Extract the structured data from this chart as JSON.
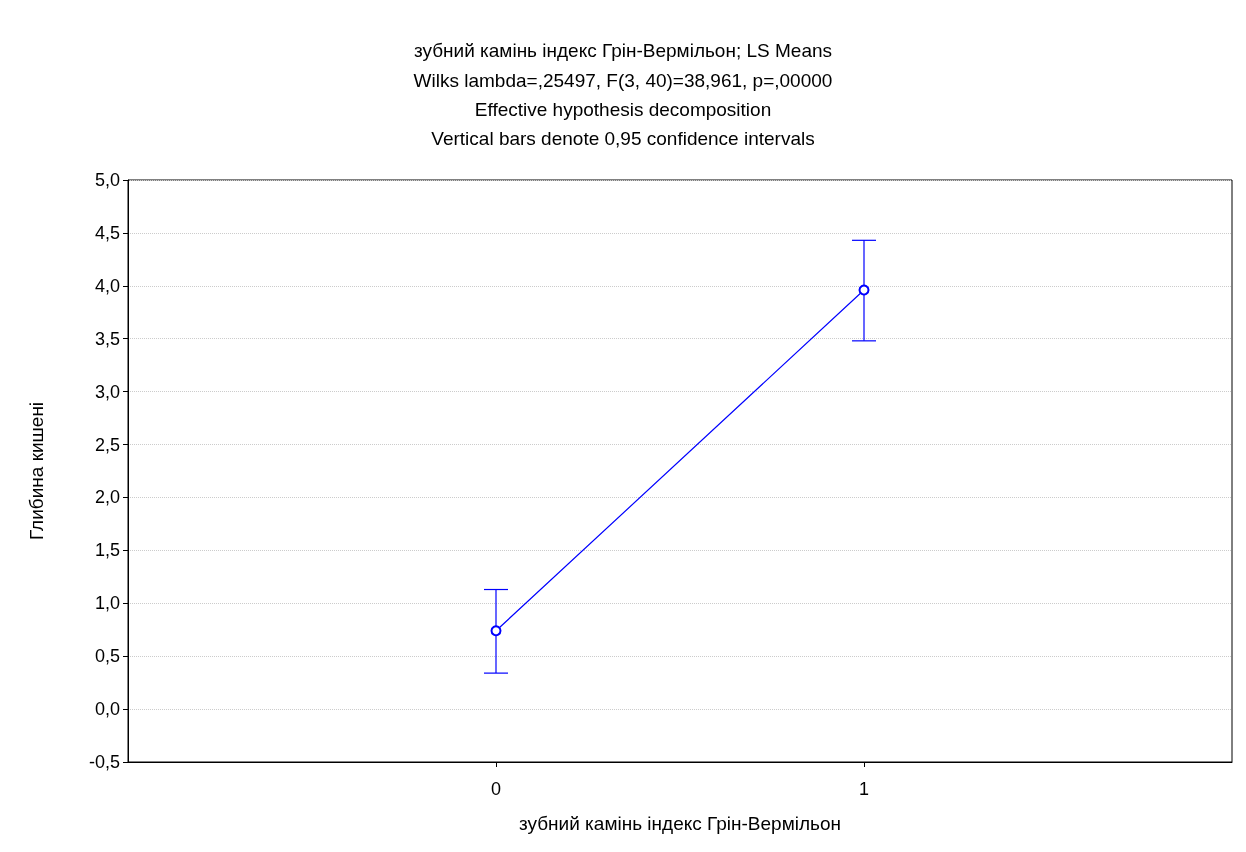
{
  "chart_data": {
    "type": "line",
    "title": "зубний камінь індекс Грін-Вермільон; LS Means",
    "subtitle": "Wilks lambda=,25497, F(3, 40)=38,961, p=,00000\nEffective hypothesis decomposition\nVertical bars denote 0,95 confidence intervals",
    "xlabel": "зубний камінь індекс Грін-Вермільон",
    "ylabel": "Глибина кишені",
    "x": [
      0,
      1
    ],
    "series": [
      {
        "color": "#0000ff",
        "values": [
          0.74,
          3.96
        ],
        "errors": [
          [
            0.34,
            1.13
          ],
          [
            3.48,
            4.43
          ]
        ]
      }
    ],
    "xlim": [
      -1,
      2
    ],
    "xticks": [
      0,
      1
    ],
    "ylim": [
      -0.5,
      5
    ],
    "yticks": [
      {
        "value": -0.5,
        "label": "-0,5"
      },
      {
        "value": 0,
        "label": "0,0"
      },
      {
        "value": 0.5,
        "label": "0,5"
      },
      {
        "value": 1,
        "label": "1,0"
      },
      {
        "value": 1.5,
        "label": "1,5"
      },
      {
        "value": 2,
        "label": "2,0"
      },
      {
        "value": 2.5,
        "label": "2,5"
      },
      {
        "value": 3,
        "label": "3,0"
      },
      {
        "value": 3.5,
        "label": "3,5"
      },
      {
        "value": 4,
        "label": "4,0"
      },
      {
        "value": 4.5,
        "label": "4,5"
      },
      {
        "value": 5,
        "label": "5,0"
      }
    ],
    "grid": "y",
    "marker": "circle",
    "line_style": "solid"
  }
}
